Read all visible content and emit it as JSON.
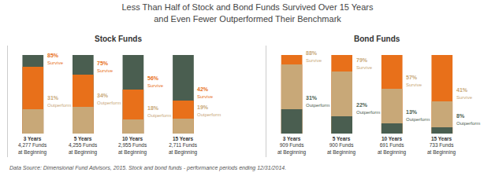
{
  "title": "Less Than Half of Stock and Bond Funds Survived Over 15 Years\nand Even Fewer Outperformed Their Benchmark",
  "annotations": [
    "Data Source: Dimensional Fund Advisors, 2015. Stock and bond funds - performance periods ending 12/31/2014."
  ],
  "chart_data": [
    {
      "type": "bar",
      "title": "Stock Funds",
      "categories": [
        "3 Years\n4,277 Funds\nat Beginning",
        "5 Years\n4,255 Funds\nat Beginning",
        "10 Years\n2,955 Funds\nat Beginning",
        "15 Years\n2,711 Funds\nat Beginning"
      ],
      "series": [
        {
          "color": "#4a5e50",
          "values": [
            100,
            100,
            100,
            100
          ]
        },
        {
          "name": "Survive",
          "color": "#e8701a",
          "values": [
            85,
            75,
            56,
            42
          ],
          "value_labels": [
            "85%",
            "75%",
            "56%",
            "42%"
          ]
        },
        {
          "name": "Outperform",
          "color": "#c8a878",
          "values": [
            31,
            34,
            18,
            19
          ],
          "value_labels": [
            "31%",
            "34%",
            "18%",
            "19%"
          ]
        }
      ],
      "ylim": [
        -30,
        112
      ],
      "data_labels": true,
      "tick_labels": false,
      "grid": false
    },
    {
      "type": "bar",
      "title": "Bond Funds",
      "categories": [
        "3 Years\n909 Funds\nat Beginning",
        "5 Years\n900 Funds\nat Beginning",
        "10 Years\n691 Funds\nat Beginning",
        "15 Years\n733 Funds\nat Beginning"
      ],
      "series": [
        {
          "color": "#e8701a",
          "values": [
            100,
            100,
            100,
            100
          ]
        },
        {
          "name": "Survive",
          "color": "#c8a878",
          "values": [
            88,
            79,
            57,
            41
          ],
          "value_labels": [
            "88%",
            "79%",
            "57%",
            "41%"
          ]
        },
        {
          "name": "Outperform",
          "color": "#4a5e50",
          "values": [
            31,
            22,
            13,
            8
          ],
          "value_labels": [
            "31%",
            "22%",
            "13%",
            "8%"
          ]
        }
      ],
      "ylim": [
        -30,
        112
      ],
      "data_labels": true,
      "tick_labels": false,
      "grid": false
    }
  ]
}
